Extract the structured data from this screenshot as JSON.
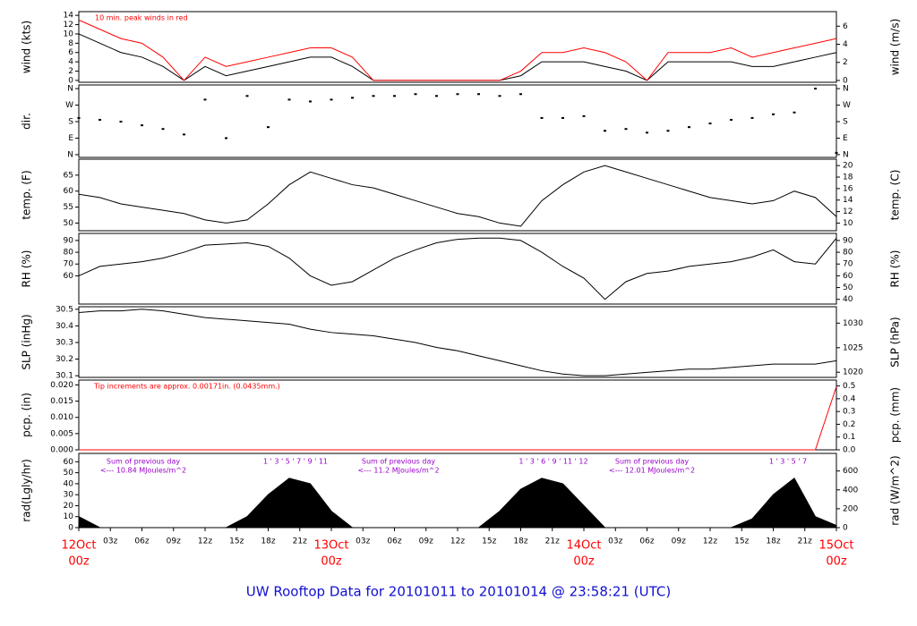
{
  "x_axis": {
    "xlim": [
      0,
      72
    ],
    "x": [
      0,
      2,
      4,
      6,
      8,
      10,
      12,
      14,
      16,
      18,
      20,
      22,
      24,
      26,
      28,
      30,
      32,
      34,
      36,
      38,
      40,
      42,
      44,
      46,
      48,
      50,
      52,
      54,
      56,
      58,
      60,
      62,
      64,
      66,
      68,
      70,
      72
    ],
    "xticks": [
      {
        "value": 0,
        "label": "00z"
      },
      {
        "value": 3,
        "label": "03z"
      },
      {
        "value": 6,
        "label": "06z"
      },
      {
        "value": 9,
        "label": "09z"
      },
      {
        "value": 12,
        "label": "12z"
      },
      {
        "value": 15,
        "label": "15z"
      },
      {
        "value": 18,
        "label": "18z"
      },
      {
        "value": 21,
        "label": "21z"
      },
      {
        "value": 24,
        "label": "00z"
      },
      {
        "value": 27,
        "label": "03z"
      },
      {
        "value": 30,
        "label": "06z"
      },
      {
        "value": 33,
        "label": "09z"
      },
      {
        "value": 36,
        "label": "12z"
      },
      {
        "value": 39,
        "label": "15z"
      },
      {
        "value": 42,
        "label": "18z"
      },
      {
        "value": 45,
        "label": "21z"
      },
      {
        "value": 48,
        "label": "00z"
      },
      {
        "value": 51,
        "label": "03z"
      },
      {
        "value": 54,
        "label": "06z"
      },
      {
        "value": 57,
        "label": "09z"
      },
      {
        "value": 60,
        "label": "12z"
      },
      {
        "value": 63,
        "label": "15z"
      },
      {
        "value": 66,
        "label": "18z"
      },
      {
        "value": 69,
        "label": "21z"
      },
      {
        "value": 72,
        "label": "00z"
      }
    ],
    "dates": [
      "12Oct",
      "13Oct",
      "14Oct",
      "15Oct"
    ],
    "date_color": "#ff0000"
  },
  "footer": "UW Rooftop Data for 20101011  to  20101014 @ 23:58:21  (UTC)",
  "chart_data": [
    {
      "type": "line",
      "ylabel": "wind (kts)",
      "y2label": "wind (m/s)",
      "annotation": "10 min. peak winds in red",
      "ylim": [
        -0.4,
        14.8
      ],
      "yticks": [
        0,
        2,
        4,
        6,
        8,
        10,
        12,
        14
      ],
      "y2lim": [
        -0.2,
        7.61
      ],
      "y2ticks": [
        0,
        2,
        4,
        6
      ],
      "series": [
        {
          "color": "#000000",
          "values": [
            10,
            8,
            6,
            5,
            3,
            0,
            3,
            1,
            2,
            3,
            4,
            5,
            5,
            3,
            0,
            0,
            0,
            0,
            0,
            0,
            0,
            1,
            4,
            4,
            4,
            3,
            2,
            0,
            4,
            4,
            4,
            4,
            3,
            3,
            4,
            5,
            6
          ]
        },
        {
          "color": "#ff0000",
          "values": [
            13,
            11,
            9,
            8,
            5,
            0,
            5,
            3,
            4,
            5,
            6,
            7,
            7,
            5,
            0,
            0,
            0,
            0,
            0,
            0,
            0,
            2,
            6,
            6,
            7,
            6,
            4,
            0,
            6,
            6,
            6,
            7,
            5,
            6,
            7,
            8,
            9
          ]
        }
      ]
    },
    {
      "type": "scatter",
      "ylabel": "dir.",
      "ylim": [
        -15,
        380
      ],
      "yticks": [
        {
          "value": 0,
          "label": "N"
        },
        {
          "value": 90,
          "label": "E"
        },
        {
          "value": 180,
          "label": "S"
        },
        {
          "value": 270,
          "label": "W"
        },
        {
          "value": 360,
          "label": "N"
        }
      ],
      "y2lim": [
        -15,
        380
      ],
      "y2ticks": [
        {
          "value": 0,
          "label": "N"
        },
        {
          "value": 90,
          "label": "E"
        },
        {
          "value": 180,
          "label": "S"
        },
        {
          "value": 270,
          "label": "W"
        },
        {
          "value": 360,
          "label": "N"
        }
      ],
      "series": [
        {
          "color": "#000000",
          "values": [
            200,
            190,
            180,
            160,
            140,
            110,
            300,
            90,
            320,
            150,
            300,
            290,
            300,
            310,
            320,
            320,
            330,
            320,
            330,
            330,
            320,
            330,
            200,
            200,
            210,
            130,
            140,
            120,
            130,
            150,
            170,
            190,
            200,
            220,
            230,
            360,
            10
          ]
        }
      ]
    },
    {
      "type": "line",
      "ylabel": "temp. (F)",
      "y2label": "temp. (C)",
      "ylim": [
        47.6,
        70
      ],
      "yticks": [
        50,
        55,
        60,
        65
      ],
      "y2lim": [
        8.67,
        21.11
      ],
      "y2ticks": [
        10,
        12,
        14,
        16,
        18,
        20
      ],
      "series": [
        {
          "color": "#000000",
          "values": [
            59,
            58,
            56,
            55,
            54,
            53,
            51,
            50,
            51,
            56,
            62,
            66,
            64,
            62,
            61,
            59,
            57,
            55,
            53,
            52,
            50,
            49,
            57,
            62,
            66,
            68,
            66,
            64,
            62,
            60,
            58,
            57,
            56,
            57,
            60,
            58,
            52
          ]
        }
      ]
    },
    {
      "type": "line",
      "ylabel": "RH (%)",
      "y2label": "RH (%)",
      "ylim": [
        36,
        96
      ],
      "yticks": [
        60,
        70,
        80,
        90
      ],
      "y2lim": [
        36,
        96
      ],
      "y2ticks": [
        40,
        50,
        60,
        70,
        80,
        90
      ],
      "series": [
        {
          "color": "#000000",
          "values": [
            60,
            68,
            70,
            72,
            75,
            80,
            86,
            87,
            88,
            85,
            75,
            60,
            52,
            55,
            65,
            75,
            82,
            88,
            91,
            92,
            92,
            90,
            80,
            68,
            58,
            40,
            55,
            62,
            64,
            68,
            70,
            72,
            76,
            82,
            72,
            70,
            92
          ]
        }
      ]
    },
    {
      "type": "line",
      "ylabel": "SLP (inHg)",
      "y2label": "SLP (hPa)",
      "ylim": [
        30.09,
        30.515
      ],
      "yticks": [
        {
          "value": 30.1,
          "label": "30.1"
        },
        {
          "value": 30.2,
          "label": "30.2"
        },
        {
          "value": 30.3,
          "label": "30.3"
        },
        {
          "value": 30.4,
          "label": "30.4"
        },
        {
          "value": 30.5,
          "label": "30.5"
        }
      ],
      "y2lim": [
        1018.95,
        1033.34
      ],
      "y2ticks": [
        1020,
        1025,
        1030
      ],
      "series": [
        {
          "color": "#000000",
          "values": [
            30.48,
            30.49,
            30.49,
            30.5,
            30.49,
            30.47,
            30.45,
            30.44,
            30.43,
            30.42,
            30.41,
            30.38,
            30.36,
            30.35,
            30.34,
            30.32,
            30.3,
            30.27,
            30.25,
            30.22,
            30.19,
            30.16,
            30.13,
            30.11,
            30.1,
            30.1,
            30.11,
            30.12,
            30.13,
            30.14,
            30.14,
            30.15,
            30.16,
            30.17,
            30.17,
            30.17,
            30.19
          ]
        }
      ]
    },
    {
      "type": "line",
      "ylabel": "pcp. (in)",
      "y2label": "pcp. (mm)",
      "annotation": "Tip increments are approx. 0.00171in. (0.0435mm.)",
      "ylim": [
        0,
        0.0215
      ],
      "yticks": [
        {
          "value": 0,
          "label": "0.000"
        },
        {
          "value": 0.005,
          "label": "0.005"
        },
        {
          "value": 0.01,
          "label": "0.010"
        },
        {
          "value": 0.015,
          "label": "0.015"
        },
        {
          "value": 0.02,
          "label": "0.020"
        }
      ],
      "y2lim": [
        0,
        0.546
      ],
      "y2ticks": [
        {
          "value": 0,
          "label": "0.0"
        },
        {
          "value": 0.1,
          "label": "0.1"
        },
        {
          "value": 0.2,
          "label": "0.2"
        },
        {
          "value": 0.3,
          "label": "0.3"
        },
        {
          "value": 0.4,
          "label": "0.4"
        },
        {
          "value": 0.5,
          "label": "0.5"
        }
      ],
      "series": [
        {
          "color": "#ff0000",
          "values": [
            0,
            0,
            0,
            0,
            0,
            0,
            0,
            0,
            0,
            0,
            0,
            0,
            0,
            0,
            0,
            0,
            0,
            0,
            0,
            0,
            0,
            0,
            0,
            0,
            0,
            0,
            0,
            0,
            0,
            0,
            0,
            0,
            0,
            0,
            0,
            0,
            0.0195
          ]
        }
      ]
    },
    {
      "type": "area",
      "ylabel": "rad(Lgly/hr)",
      "y2label": "rad (W/m^2)",
      "ylim": [
        0,
        67.6
      ],
      "yticks": [
        0,
        10,
        20,
        30,
        40,
        50,
        60
      ],
      "y2lim": [
        0,
        786
      ],
      "y2ticks": [
        0,
        200,
        400,
        600
      ],
      "annotations": [
        "Sum of previous day",
        "<--- 10.84 MJoules/m^2",
        "Sum of previous day",
        "<--- 11.2 MJoules/m^2",
        "Sum of previous day",
        "<--- 12.01 MJoules/m^2"
      ],
      "annotation_color": "#9900cc",
      "hour_marks": [
        "1 ' 3 ' 5 ' 7 ' 9 ' 11",
        "1 ' 3 ' 6 ' 9 ' 11 ' 12",
        "1 ' 3 ' 5 ' 7"
      ],
      "series": [
        {
          "color": "#000000",
          "values": [
            10,
            0,
            0,
            0,
            0,
            0,
            0,
            0,
            10,
            30,
            45,
            40,
            15,
            0,
            0,
            0,
            0,
            0,
            0,
            0,
            15,
            35,
            45,
            40,
            20,
            0,
            0,
            0,
            0,
            0,
            0,
            0,
            8,
            30,
            45,
            10,
            2
          ]
        }
      ]
    }
  ]
}
